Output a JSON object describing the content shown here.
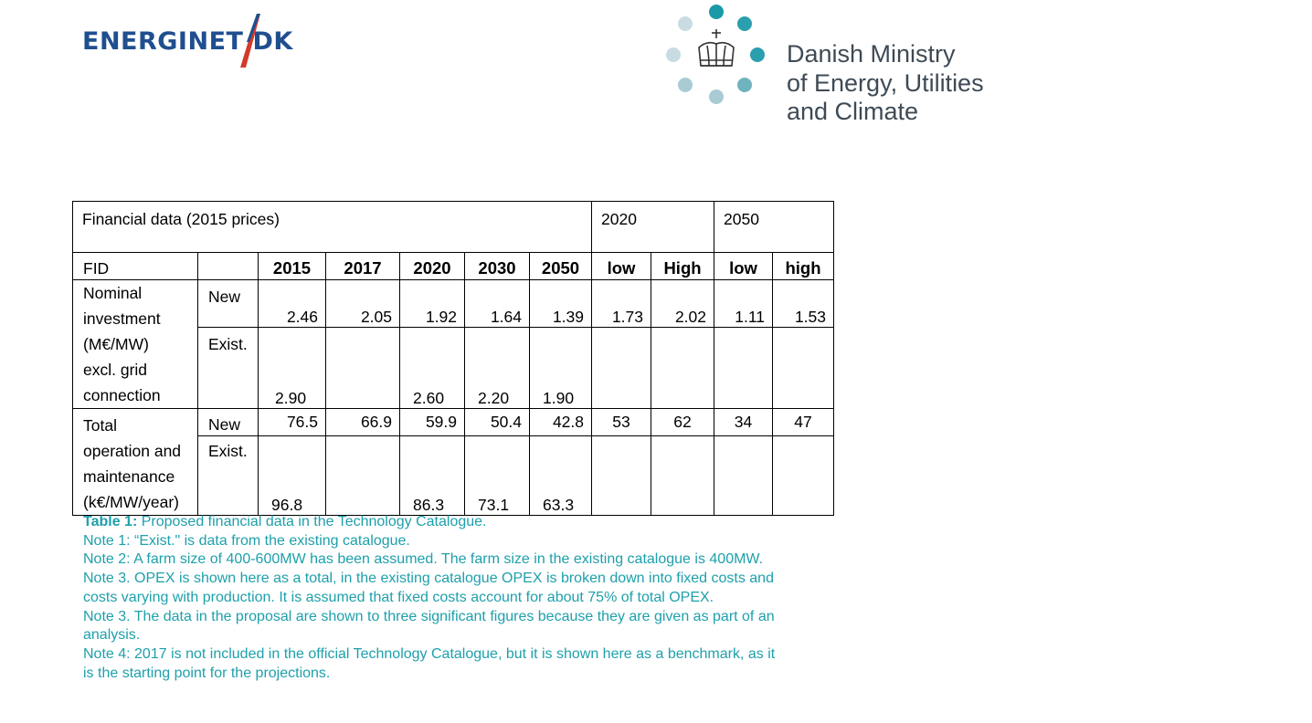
{
  "logos": {
    "energinet": {
      "text_left": "ENERGINET",
      "text_right": "DK",
      "color": "#1f4f8f",
      "accent": "#d23a2a"
    },
    "ministry": {
      "lines": [
        "Danish Ministry",
        "of Energy, Utilities",
        "and Climate"
      ],
      "color": "#3e4a55",
      "dot_color": "#1a9aa6"
    }
  },
  "table": {
    "title": "Financial data (2015 prices)",
    "group_headers": [
      "2020",
      "2050"
    ],
    "header_row": {
      "label": "FID",
      "years": [
        "2015",
        "2017",
        "2020",
        "2030",
        "2050"
      ],
      "scenarios": [
        "low",
        "High",
        "low",
        "high"
      ]
    },
    "rows": [
      {
        "label_lines": [
          "Nominal",
          "investment",
          "(M€/MW)",
          "excl. grid",
          "connection"
        ],
        "sub": [
          {
            "type": "New",
            "values": [
              "2.46",
              "2.05",
              "1.92",
              "1.64",
              "1.39",
              "1.73",
              "2.02",
              "1.11",
              "1.53"
            ]
          },
          {
            "type": "Exist.",
            "values": [
              "2.90",
              "",
              "2.60",
              "2.20",
              "1.90",
              "",
              "",
              "",
              ""
            ]
          }
        ]
      },
      {
        "label_lines": [
          "Total",
          "operation and",
          "maintenance",
          "(k€/MW/year)"
        ],
        "sub": [
          {
            "type": "New",
            "values": [
              "76.5",
              "66.9",
              "59.9",
              "50.4",
              "42.8",
              "53",
              "62",
              "34",
              "47"
            ]
          },
          {
            "type": "Exist.",
            "values": [
              "96.8",
              "",
              "86.3",
              "73.1",
              "63.3",
              "",
              "",
              "",
              ""
            ]
          }
        ]
      }
    ]
  },
  "notes": {
    "caption_label": "Table 1:",
    "caption_text": " Proposed financial data in the Technology Catalogue.",
    "items": [
      "Note 1:  “Exist.\" is data from the existing catalogue.",
      "Note 2: A farm size of 400-600MW has been assumed. The farm size in the existing catalogue is 400MW.",
      "Note 3. OPEX is shown here as a total, in the existing catalogue OPEX is broken down into fixed costs and costs varying with production. It is assumed that fixed costs account for about 75% of total OPEX.",
      "Note 3. The data in the proposal are shown to three significant figures because they are given as part of an analysis.",
      "Note 4: 2017 is not included in the official Technology Catalogue, but it is shown here as a benchmark, as it is the starting point for the projections."
    ],
    "color": "#1ea0ab"
  }
}
